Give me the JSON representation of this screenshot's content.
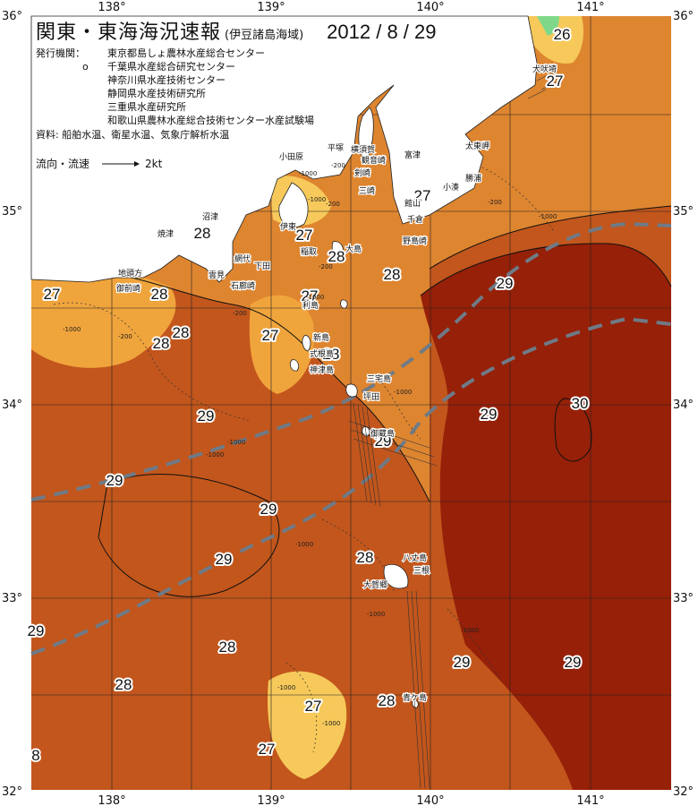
{
  "title": "関東・東海海況速報",
  "subtitle": "(伊豆諸島海域)",
  "date": "2012 / 8 / 29",
  "organizations_label": "発行機関：",
  "organizations": [
    {
      "mark": "",
      "name": "東京都島しょ農林水産総合センター"
    },
    {
      "mark": "o",
      "name": "千葉県水産総合研究センター"
    },
    {
      "mark": "",
      "name": "神奈川県水産技術センター"
    },
    {
      "mark": "",
      "name": "静岡県水産技術研究所"
    },
    {
      "mark": "",
      "name": "三重県水産研究所"
    },
    {
      "mark": "",
      "name": "和歌山県農林水産総合技術センター水産試験場"
    }
  ],
  "data_sources": "資料: 船舶水温、衛星水温、気象庁解析水温",
  "legend": {
    "label": "流向・流速",
    "value": "2kt"
  },
  "axes": {
    "lon_labels": [
      "138°",
      "139°",
      "140°",
      "141°"
    ],
    "lat_labels": [
      "36°",
      "35°",
      "34°",
      "33°",
      "32°"
    ]
  },
  "isotherm_labels": [
    "26",
    "27",
    "27",
    "28",
    "27",
    "28",
    "28",
    "29",
    "27",
    "28",
    "27",
    "28",
    "28",
    "27",
    "28",
    "29",
    "29",
    "30",
    "29",
    "29",
    "29",
    "28",
    "29",
    "28",
    "28",
    "27",
    "29",
    "29",
    "28",
    "27",
    "8",
    "29"
  ],
  "place_names": [
    "犬吠埼",
    "太東岬",
    "勝浦",
    "小湊",
    "館山",
    "千倉",
    "野島崎",
    "富津",
    "平塚",
    "横須賀",
    "観音崎",
    "剣崎",
    "三崎",
    "小田原",
    "伊東",
    "稲取",
    "大島",
    "下田",
    "石廊崎",
    "網代",
    "焼津",
    "御前崎",
    "地頭方",
    "利島",
    "新島",
    "式根島",
    "神津島",
    "三宅島",
    "御蔵島",
    "坪田",
    "八丈島",
    "三根",
    "大賀郷",
    "青ケ島",
    "沼津",
    "雲見"
  ],
  "depth_labels": [
    "-1000",
    "-200",
    "-1000",
    "-200",
    "-1000",
    "-200",
    "-1000",
    "-200",
    "-200",
    "-1000",
    "-200",
    "-1000",
    "-1000",
    "-1000",
    "-1000",
    "-1000",
    "-1000",
    "-1000",
    "-1000"
  ],
  "colors": {
    "t26": "#f6c95a",
    "t27": "#f0a43c",
    "t28": "#de8530",
    "t29": "#c2561c",
    "t30": "#962008",
    "land": "#ffffff",
    "kuroshio": "#6f7a86",
    "warm_tongue": "#7fd88a"
  }
}
